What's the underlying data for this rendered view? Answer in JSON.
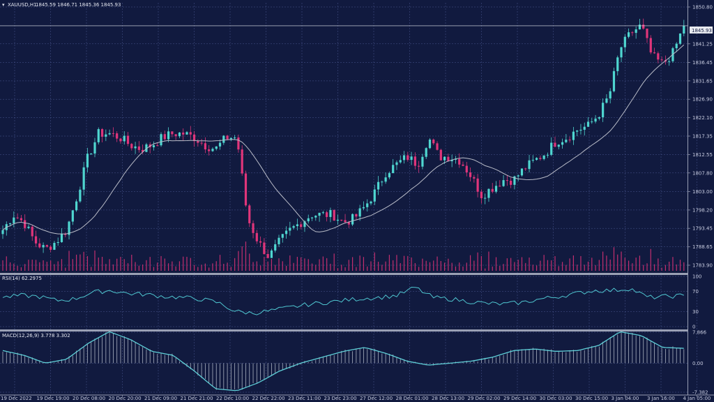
{
  "header": {
    "symbol": "XAUUSD,H1",
    "ohlc": "1845.59 1846.71 1845.36 1845.93"
  },
  "colors": {
    "background": "#111a3f",
    "grid": "#4a5790",
    "bull": "#4fd6d0",
    "bear": "#e0357a",
    "volume": "#c22f6f",
    "ma": "#b9bcc8",
    "rsi": "#4fc6d0",
    "macd_line": "#5fd0d8",
    "macd_hist": "#aab0c0",
    "text": "#c8cce0",
    "separator": "#9aa0b4"
  },
  "chart_data": [
    {
      "type": "candlestick",
      "name": "price",
      "title": "XAUUSD,H1",
      "current_price": 1845.93,
      "current_price_label": "1845.93",
      "ylim": [
        1783.9,
        1850.8
      ],
      "y_ticks": [
        1850.8,
        1841.25,
        1836.45,
        1831.65,
        1826.9,
        1822.1,
        1817.35,
        1812.55,
        1807.8,
        1803.0,
        1798.2,
        1793.45,
        1788.65,
        1783.9
      ],
      "y_tick_labels": [
        "1850.80",
        "1841.25",
        "1836.45",
        "1831.65",
        "1826.90",
        "1822.10",
        "1817.35",
        "1812.55",
        "1807.80",
        "1803.00",
        "1798.20",
        "1793.45",
        "1788.65",
        "1783.90"
      ],
      "x_tick_labels": [
        "19 Dec 2022",
        "19 Dec 19:00",
        "20 Dec 08:00",
        "20 Dec 20:00",
        "21 Dec 09:00",
        "21 Dec 21:00",
        "22 Dec 10:00",
        "22 Dec 22:00",
        "23 Dec 11:00",
        "23 Dec 23:00",
        "27 Dec 12:00",
        "28 Dec 01:00",
        "28 Dec 13:00",
        "29 Dec 02:00",
        "29 Dec 14:00",
        "30 Dec 03:00",
        "30 Dec 15:00",
        "3 Jan 04:00",
        "3 Jan 16:00",
        "4 Jan 05:00"
      ],
      "close_path": [
        1793,
        1797,
        1795,
        1790,
        1788,
        1790,
        1793,
        1802,
        1812,
        1818,
        1818,
        1817,
        1815,
        1814,
        1815,
        1817,
        1818,
        1818,
        1817,
        1815,
        1814,
        1817,
        1817,
        1796,
        1790,
        1786,
        1790,
        1793,
        1795,
        1797,
        1797,
        1797,
        1795,
        1796,
        1799,
        1803,
        1808,
        1810,
        1812,
        1810,
        1817,
        1812,
        1812,
        1811,
        1807,
        1802,
        1804,
        1806,
        1806,
        1809,
        1811,
        1813,
        1816,
        1817,
        1819,
        1820,
        1823,
        1828,
        1840,
        1844,
        1846,
        1838,
        1836,
        1839,
        1845.93
      ],
      "moving_average_period": 20,
      "volume": "histogram at bottom of price pane"
    },
    {
      "type": "line",
      "name": "RSI",
      "title": "RSI(14) 62.2975",
      "label": "RSI(14)",
      "value": 62.2975,
      "value_label": "62.2975",
      "ylim": [
        0,
        100
      ],
      "y_ticks": [
        100,
        70,
        30,
        0
      ],
      "y_tick_labels": [
        "100",
        "70",
        "30",
        "0"
      ],
      "key_points": [
        58,
        62,
        60,
        52,
        55,
        68,
        72,
        66,
        64,
        60,
        58,
        55,
        48,
        30,
        27,
        32,
        38,
        44,
        48,
        52,
        56,
        58,
        62,
        78,
        58,
        55,
        50,
        46,
        45,
        48,
        55,
        60,
        66,
        72,
        72,
        76,
        58,
        60,
        62
      ]
    },
    {
      "type": "line+histogram",
      "name": "MACD",
      "title": "MACD(12,26,9) 3.778 3.302",
      "label": "MACD(12,26,9)",
      "macd": 3.778,
      "signal": 3.302,
      "value_label": "3.778 3.302",
      "ylim": [
        -7.382,
        7.866
      ],
      "y_ticks": [
        7.866,
        0.0,
        -7.382
      ],
      "y_tick_labels": [
        "7.866",
        "0.00",
        "-7.382"
      ],
      "key_points": [
        3.2,
        2.0,
        0.0,
        1.0,
        5.0,
        8.0,
        6.0,
        3.0,
        2.0,
        -2.0,
        -6.5,
        -7.0,
        -5.0,
        -2.0,
        0.0,
        1.5,
        3.0,
        4.0,
        2.5,
        0.5,
        -0.5,
        0.0,
        0.5,
        1.5,
        3.2,
        3.6,
        3.0,
        3.2,
        4.5,
        8.0,
        7.0,
        4.0,
        3.778
      ]
    }
  ]
}
